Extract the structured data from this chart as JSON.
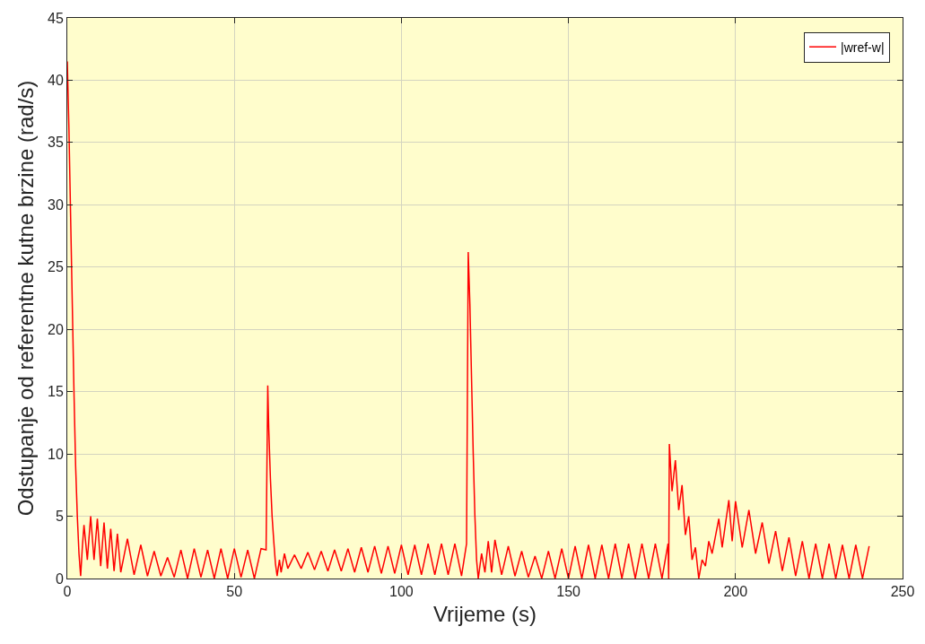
{
  "chart_data": {
    "type": "line",
    "xlabel": "Vrijeme (s)",
    "ylabel": "Odstupanje od referentne kutne brzine (rad/s)",
    "x": [
      0,
      0.5,
      1,
      1.5,
      2,
      2.5,
      3,
      3.5,
      4,
      4.5,
      5,
      6,
      7,
      8,
      9,
      10,
      11,
      12,
      13,
      14,
      15,
      16,
      18,
      20,
      22,
      24,
      26,
      28,
      30,
      32,
      34,
      36,
      38,
      40,
      42,
      44,
      46,
      48,
      50,
      52,
      54,
      56,
      58,
      59.5,
      60,
      60.3,
      60.8,
      61.3,
      61.8,
      62.3,
      62.8,
      63.5,
      64,
      65,
      66,
      68,
      70,
      72,
      74,
      76,
      78,
      80,
      82,
      84,
      86,
      88,
      90,
      92,
      94,
      96,
      98,
      100,
      102,
      104,
      106,
      108,
      110,
      112,
      114,
      116,
      118,
      119.5,
      120,
      120.5,
      121,
      121.5,
      122,
      122.5,
      123,
      124,
      125,
      126,
      127,
      128,
      130,
      132,
      134,
      136,
      138,
      140,
      142,
      144,
      146,
      148,
      150,
      152,
      154,
      156,
      158,
      160,
      162,
      164,
      166,
      168,
      170,
      172,
      174,
      176,
      178,
      179.8,
      180,
      180.2,
      181,
      182,
      183,
      184,
      185,
      186,
      187,
      188,
      189,
      190,
      191,
      192,
      193,
      195,
      196,
      198,
      199,
      200,
      202,
      204,
      206,
      208,
      210,
      212,
      214,
      216,
      218,
      220,
      222,
      224,
      226,
      228,
      230,
      232,
      234,
      236,
      238,
      240
    ],
    "series": [
      {
        "name": "|wref-w|",
        "color": "#ff0000",
        "values": [
          41.5,
          36,
          29,
          22,
          15,
          9,
          5,
          2,
          0.2,
          2.5,
          4.3,
          1.5,
          5,
          1.5,
          4.8,
          1,
          4.5,
          0.8,
          4,
          0.6,
          3.6,
          0.5,
          3.2,
          0.3,
          2.7,
          0.2,
          2.2,
          0.2,
          1.7,
          0.1,
          2.3,
          0,
          2.4,
          0.1,
          2.3,
          0,
          2.4,
          0,
          2.4,
          0.1,
          2.3,
          0,
          2.4,
          2.3,
          15.5,
          12,
          8,
          5,
          3,
          1.2,
          0.2,
          1.5,
          0.5,
          2,
          0.8,
          1.9,
          0.8,
          2.1,
          0.7,
          2.2,
          0.6,
          2.3,
          0.6,
          2.4,
          0.5,
          2.5,
          0.5,
          2.6,
          0.4,
          2.6,
          0.4,
          2.7,
          0.3,
          2.7,
          0.3,
          2.8,
          0.3,
          2.8,
          0.3,
          2.8,
          0.2,
          2.8,
          26.2,
          22,
          16,
          10,
          5,
          1.5,
          0,
          2,
          0.5,
          3,
          0.5,
          3.1,
          0.3,
          2.6,
          0.2,
          2.2,
          0.1,
          1.8,
          0,
          2.2,
          0,
          2.4,
          0,
          2.6,
          0,
          2.7,
          0,
          2.7,
          0,
          2.8,
          0,
          2.8,
          0,
          2.8,
          0,
          2.8,
          0,
          2.8,
          0,
          10.8,
          7,
          9.5,
          5.5,
          7.5,
          3.5,
          5,
          1.5,
          2.5,
          0,
          1.5,
          1,
          3,
          2,
          4.8,
          2.5,
          6.3,
          3,
          6.2,
          2.5,
          5.5,
          2,
          4.5,
          1.2,
          3.8,
          0.6,
          3.3,
          0.2,
          3,
          0,
          2.8,
          0,
          2.8,
          0,
          2.7,
          0,
          2.7,
          0,
          2.6
        ]
      }
    ],
    "xlim": [
      0,
      250
    ],
    "ylim": [
      0,
      45
    ],
    "xticks": [
      0,
      50,
      100,
      150,
      200,
      250
    ],
    "yticks": [
      0,
      5,
      10,
      15,
      20,
      25,
      30,
      35,
      40,
      45
    ],
    "grid": true,
    "legend": "top right"
  }
}
